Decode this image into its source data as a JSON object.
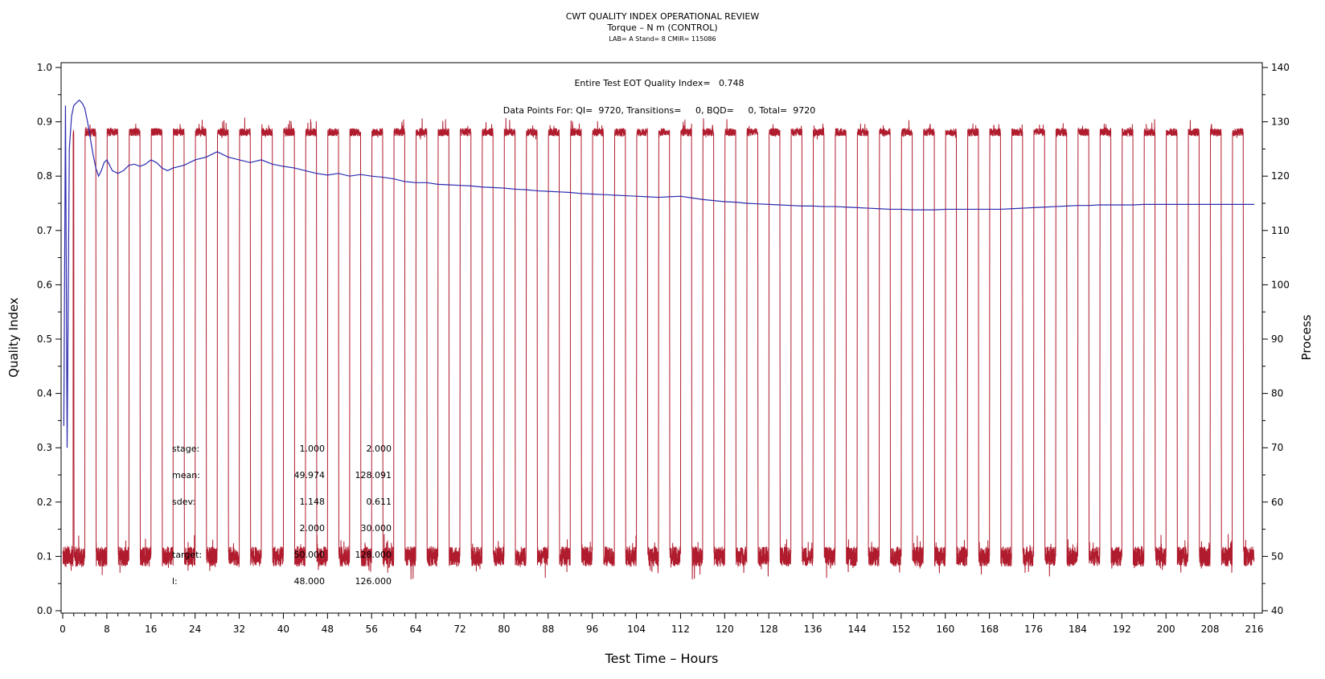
{
  "header": {
    "title": "CWT QUALITY INDEX OPERATIONAL REVIEW",
    "subtitle": "Torque – N m (CONTROL)",
    "info": "LAB= A Stand= 8 CMIR= 115086"
  },
  "annotations": {
    "eot_quality": "Entire Test EOT Quality Index=   0.748",
    "data_points": "Data Points For: QI=  9720, Transitions=     0, BQD=     0, Total=  9720"
  },
  "stats_table": {
    "rows": [
      {
        "label": "stage:",
        "v1": "1.000",
        "v2": "2.000"
      },
      {
        "label": "mean:",
        "v1": "49.974",
        "v2": "128.091"
      },
      {
        "label": "sdev:",
        "v1": "1.148",
        "v2": "0.611"
      },
      {
        "label": "",
        "v1": "2.000",
        "v2": "30.000"
      },
      {
        "label": "target:",
        "v1": "50.000",
        "v2": "128.000"
      },
      {
        "label": "l:",
        "v1": "48.000",
        "v2": "126.000"
      }
    ]
  },
  "chart_data": {
    "type": "line",
    "xlabel": "Test Time – Hours",
    "ylabel": "Quality Index",
    "y2label": "Process",
    "xlim": [
      0,
      216
    ],
    "ylim": [
      0,
      1.0
    ],
    "y2lim": [
      40,
      140
    ],
    "xticks": [
      0,
      8,
      16,
      24,
      32,
      40,
      48,
      56,
      64,
      72,
      80,
      88,
      96,
      104,
      112,
      120,
      128,
      136,
      144,
      152,
      160,
      168,
      176,
      184,
      192,
      200,
      208,
      216
    ],
    "yticks": [
      0.0,
      0.1,
      0.2,
      0.3,
      0.4,
      0.5,
      0.6,
      0.7,
      0.8,
      0.9,
      1.0
    ],
    "y2ticks": [
      40,
      50,
      60,
      70,
      80,
      90,
      100,
      110,
      120,
      130,
      140
    ],
    "grid": false,
    "series": [
      {
        "axis": "left",
        "color": "#2b2bb0",
        "points": [
          [
            0.2,
            0.34
          ],
          [
            0.5,
            0.93
          ],
          [
            0.8,
            0.3
          ],
          [
            1.2,
            0.85
          ],
          [
            1.6,
            0.91
          ],
          [
            2.0,
            0.93
          ],
          [
            2.5,
            0.935
          ],
          [
            3.0,
            0.94
          ],
          [
            3.5,
            0.935
          ],
          [
            4.0,
            0.925
          ],
          [
            4.5,
            0.9
          ],
          [
            5.0,
            0.87
          ],
          [
            5.5,
            0.84
          ],
          [
            6.0,
            0.815
          ],
          [
            6.5,
            0.8
          ],
          [
            7.0,
            0.81
          ],
          [
            7.5,
            0.825
          ],
          [
            8.0,
            0.83
          ],
          [
            8.5,
            0.82
          ],
          [
            9.0,
            0.81
          ],
          [
            10,
            0.805
          ],
          [
            11,
            0.81
          ],
          [
            12,
            0.82
          ],
          [
            13,
            0.822
          ],
          [
            14,
            0.818
          ],
          [
            15,
            0.822
          ],
          [
            16,
            0.83
          ],
          [
            17,
            0.825
          ],
          [
            18,
            0.815
          ],
          [
            19,
            0.81
          ],
          [
            20,
            0.815
          ],
          [
            22,
            0.82
          ],
          [
            24,
            0.83
          ],
          [
            26,
            0.835
          ],
          [
            27,
            0.84
          ],
          [
            28,
            0.845
          ],
          [
            30,
            0.835
          ],
          [
            32,
            0.83
          ],
          [
            34,
            0.825
          ],
          [
            36,
            0.83
          ],
          [
            38,
            0.822
          ],
          [
            40,
            0.818
          ],
          [
            42,
            0.815
          ],
          [
            44,
            0.81
          ],
          [
            46,
            0.805
          ],
          [
            48,
            0.802
          ],
          [
            50,
            0.805
          ],
          [
            52,
            0.8
          ],
          [
            54,
            0.803
          ],
          [
            56,
            0.8
          ],
          [
            58,
            0.798
          ],
          [
            60,
            0.795
          ],
          [
            62,
            0.79
          ],
          [
            64,
            0.788
          ],
          [
            66,
            0.788
          ],
          [
            68,
            0.785
          ],
          [
            70,
            0.784
          ],
          [
            72,
            0.783
          ],
          [
            74,
            0.782
          ],
          [
            76,
            0.78
          ],
          [
            78,
            0.779
          ],
          [
            80,
            0.778
          ],
          [
            82,
            0.776
          ],
          [
            84,
            0.775
          ],
          [
            86,
            0.773
          ],
          [
            88,
            0.772
          ],
          [
            90,
            0.771
          ],
          [
            92,
            0.77
          ],
          [
            94,
            0.768
          ],
          [
            96,
            0.767
          ],
          [
            98,
            0.766
          ],
          [
            100,
            0.765
          ],
          [
            102,
            0.764
          ],
          [
            104,
            0.763
          ],
          [
            106,
            0.762
          ],
          [
            108,
            0.761
          ],
          [
            110,
            0.762
          ],
          [
            112,
            0.763
          ],
          [
            114,
            0.76
          ],
          [
            116,
            0.757
          ],
          [
            118,
            0.755
          ],
          [
            120,
            0.753
          ],
          [
            122,
            0.752
          ],
          [
            124,
            0.75
          ],
          [
            126,
            0.749
          ],
          [
            128,
            0.748
          ],
          [
            130,
            0.747
          ],
          [
            132,
            0.746
          ],
          [
            134,
            0.745
          ],
          [
            136,
            0.745
          ],
          [
            138,
            0.744
          ],
          [
            140,
            0.744
          ],
          [
            142,
            0.743
          ],
          [
            144,
            0.742
          ],
          [
            146,
            0.741
          ],
          [
            148,
            0.74
          ],
          [
            150,
            0.739
          ],
          [
            152,
            0.739
          ],
          [
            154,
            0.738
          ],
          [
            156,
            0.738
          ],
          [
            158,
            0.738
          ],
          [
            160,
            0.739
          ],
          [
            162,
            0.739
          ],
          [
            164,
            0.739
          ],
          [
            166,
            0.739
          ],
          [
            168,
            0.739
          ],
          [
            170,
            0.739
          ],
          [
            172,
            0.74
          ],
          [
            174,
            0.741
          ],
          [
            176,
            0.742
          ],
          [
            178,
            0.743
          ],
          [
            180,
            0.744
          ],
          [
            182,
            0.745
          ],
          [
            184,
            0.746
          ],
          [
            186,
            0.746
          ],
          [
            188,
            0.747
          ],
          [
            190,
            0.747
          ],
          [
            192,
            0.747
          ],
          [
            194,
            0.747
          ],
          [
            196,
            0.748
          ],
          [
            198,
            0.748
          ],
          [
            200,
            0.748
          ],
          [
            202,
            0.748
          ],
          [
            204,
            0.748
          ],
          [
            206,
            0.748
          ],
          [
            208,
            0.748
          ],
          [
            210,
            0.748
          ],
          [
            212,
            0.748
          ],
          [
            214,
            0.748
          ],
          [
            216,
            0.748
          ]
        ]
      },
      {
        "axis": "right",
        "color": "#b01c2e",
        "cycle_period_hours": 4,
        "low_value": 49.974,
        "high_value": 128.091,
        "low_spread": 1.148,
        "high_spread": 0.611
      }
    ]
  }
}
